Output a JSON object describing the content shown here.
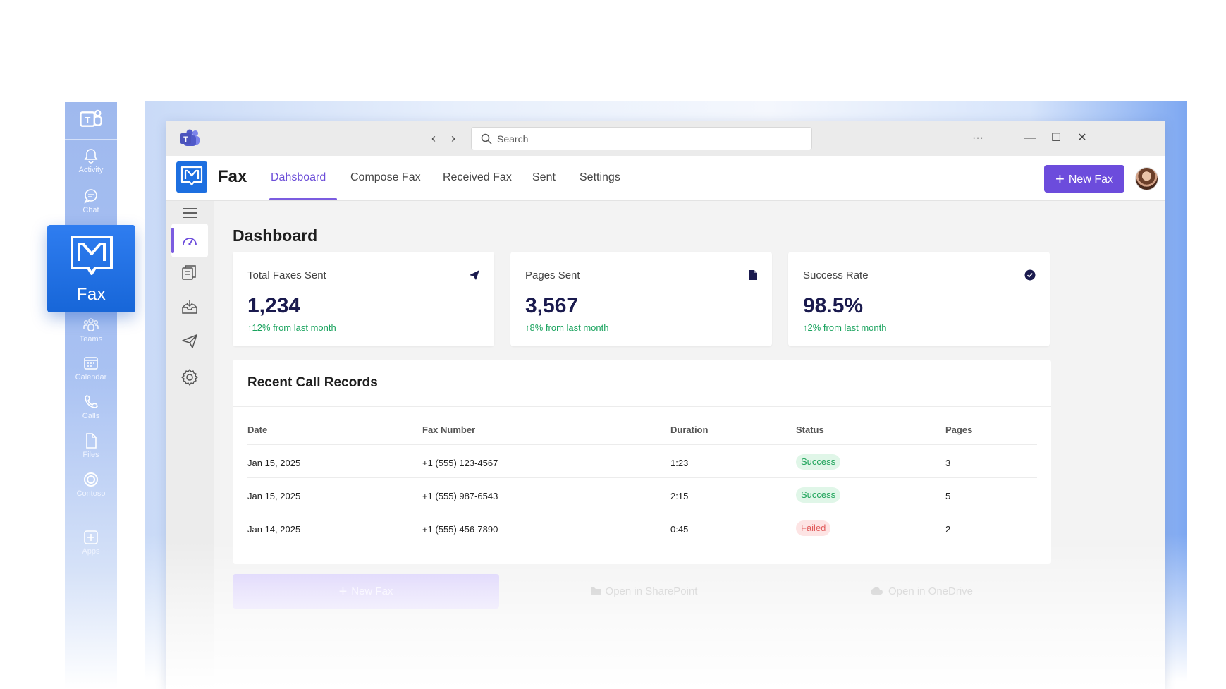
{
  "rail": {
    "items": [
      {
        "label": "Activity",
        "icon": "bell-icon"
      },
      {
        "label": "Chat",
        "icon": "chat-icon"
      },
      {
        "label": "Teams",
        "icon": "teams-icon"
      },
      {
        "label": "Calendar",
        "icon": "calendar-icon"
      },
      {
        "label": "Calls",
        "icon": "phone-icon"
      },
      {
        "label": "Files",
        "icon": "file-icon"
      },
      {
        "label": "Contoso",
        "icon": "contoso-icon"
      },
      {
        "label": "Apps",
        "icon": "apps-plus-icon"
      }
    ],
    "fax_tile_label": "Fax"
  },
  "titlebar": {
    "search_placeholder": "Search",
    "back": "‹",
    "forward": "›",
    "more": "···",
    "minimize": "—",
    "maximize": "☐",
    "close": "✕"
  },
  "appbar": {
    "app_name": "Fax",
    "tabs": [
      {
        "label": "Dahsboard",
        "active": true
      },
      {
        "label": "Compose Fax",
        "active": false
      },
      {
        "label": "Received Fax",
        "active": false
      },
      {
        "label": "Sent",
        "active": false
      },
      {
        "label": "Settings",
        "active": false
      }
    ],
    "new_fax_label": "New Fax"
  },
  "sidenav": {
    "items": [
      "menu-icon",
      "dashboard-gauge-icon",
      "documents-icon",
      "inbox-download-icon",
      "send-icon",
      "settings-gear-icon"
    ]
  },
  "dashboard": {
    "title": "Dashboard",
    "stats": [
      {
        "label": "Total Faxes Sent",
        "value": "1,234",
        "change": "12% from last month",
        "icon": "send-plane-icon"
      },
      {
        "label": "Pages Sent",
        "value": "3,567",
        "change": "8% from last month",
        "icon": "document-icon"
      },
      {
        "label": "Success Rate",
        "value": "98.5%",
        "change": "2% from last month",
        "icon": "check-circle-icon"
      }
    ],
    "records": {
      "title": "Recent Call Records",
      "columns": [
        "Date",
        "Fax Number",
        "Duration",
        "Status",
        "Pages"
      ],
      "rows": [
        {
          "date": "Jan 15, 2025",
          "number": "+1 (555) 123-4567",
          "duration": "1:23",
          "status": "Success",
          "pages": "3"
        },
        {
          "date": "Jan 15, 2025",
          "number": "+1 (555) 987-6543",
          "duration": "2:15",
          "status": "Success",
          "pages": "5"
        },
        {
          "date": "Jan 14, 2025",
          "number": "+1 (555) 456-7890",
          "duration": "0:45",
          "status": "Failed",
          "pages": "2"
        }
      ]
    },
    "actions": {
      "new_fax": "New Fax",
      "sharepoint": "Open in SharePoint",
      "onedrive": "Open in OneDrive"
    }
  },
  "colors": {
    "accent": "#6c4cdc",
    "brand_blue": "#1d6fe0",
    "success": "#1fa45a",
    "failed": "#e05a5a"
  }
}
